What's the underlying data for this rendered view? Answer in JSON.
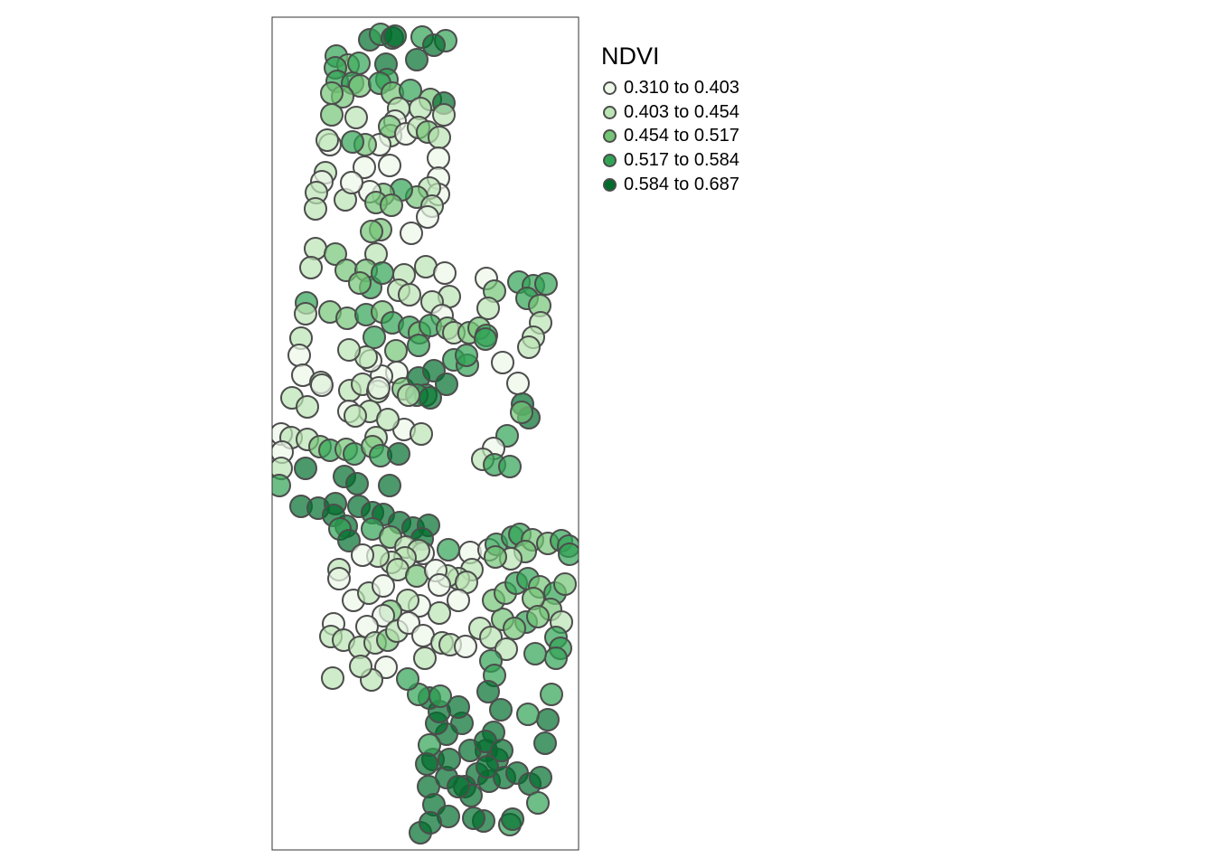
{
  "legend": {
    "title": "NDVI",
    "classes": [
      {
        "label": "0.310 to 0.403",
        "color": "#edf8e9"
      },
      {
        "label": "0.403 to 0.454",
        "color": "#bae4b3"
      },
      {
        "label": "0.454 to 0.517",
        "color": "#74c476"
      },
      {
        "label": "0.517 to 0.584",
        "color": "#31a354"
      },
      {
        "label": "0.584 to 0.687",
        "color": "#006d2c"
      }
    ]
  },
  "map": {
    "type": "proportional-symbol points",
    "variable": "NDVI",
    "symbol_fill_opacity": 0.7,
    "symbol_border_color": "#4d4d4d"
  }
}
